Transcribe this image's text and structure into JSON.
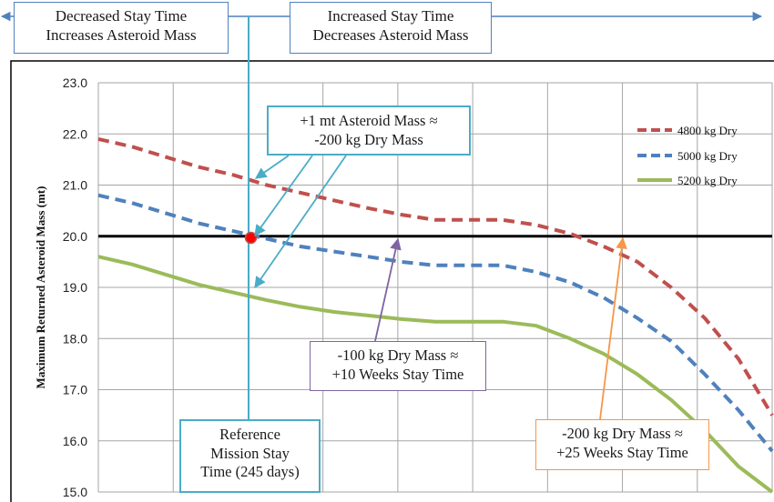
{
  "header": {
    "left_box": {
      "line1": "Decreased Stay Time",
      "line2": "Increases Asteroid Mass"
    },
    "right_box": {
      "line1": "Increased Stay Time",
      "line2": "Decreases Asteroid Mass"
    }
  },
  "annotations": {
    "asteroid_mass": {
      "line1": "+1 mt Asteroid Mass ≈",
      "line2": "-200 kg Dry Mass"
    },
    "dry_mass_100": {
      "line1": "-100 kg Dry Mass ≈",
      "line2": "+10 Weeks Stay Time"
    },
    "reference": {
      "line1": "Reference",
      "line2": "Mission Stay",
      "line3": "Time (245 days)"
    },
    "dry_mass_200": {
      "line1": "-200 kg Dry Mass ≈",
      "line2": "+25 Weeks Stay Time"
    }
  },
  "colors": {
    "series_4800": "#c0504d",
    "series_5000": "#4f81bd",
    "series_5200": "#9bbb59",
    "reference_line": "#000000",
    "cyan_annotation": "#4bacc6",
    "purple_annotation": "#8064a2",
    "orange_annotation": "#f79646",
    "arrow_blue": "#4f81bd",
    "grid": "#a6a6a6"
  },
  "chart_data": {
    "type": "line",
    "title": "",
    "xlabel": "",
    "ylabel": "Maximum Returned Asteroid Mass (mt)",
    "ylim": [
      15.0,
      23.0
    ],
    "yticks": [
      "15.0",
      "16.0",
      "17.0",
      "18.0",
      "19.0",
      "20.0",
      "21.0",
      "22.0",
      "23.0"
    ],
    "xgrid_count": 9,
    "grid": true,
    "legend_position": "top-right",
    "reference_value": 20.0,
    "reference_stay_fraction": 0.225,
    "marker": {
      "x_fraction": 0.225,
      "y": 19.97
    },
    "series": [
      {
        "name": "4800 kg Dry",
        "color": "#c0504d",
        "dash": "dashed",
        "x": [
          0,
          0.05,
          0.1,
          0.15,
          0.2,
          0.25,
          0.3,
          0.35,
          0.4,
          0.45,
          0.5,
          0.55,
          0.6,
          0.65,
          0.7,
          0.75,
          0.8,
          0.85,
          0.9,
          0.95,
          1.0
        ],
        "values": [
          21.9,
          21.75,
          21.55,
          21.35,
          21.2,
          21.0,
          20.85,
          20.7,
          20.55,
          20.42,
          20.32,
          20.32,
          20.32,
          20.22,
          20.05,
          19.8,
          19.5,
          19.0,
          18.4,
          17.6,
          16.5
        ]
      },
      {
        "name": "5000 kg Dry",
        "color": "#4f81bd",
        "dash": "dashed",
        "x": [
          0,
          0.05,
          0.1,
          0.15,
          0.2,
          0.25,
          0.3,
          0.35,
          0.4,
          0.45,
          0.5,
          0.55,
          0.6,
          0.65,
          0.7,
          0.75,
          0.8,
          0.85,
          0.9,
          0.95,
          1.0
        ],
        "values": [
          20.8,
          20.65,
          20.45,
          20.25,
          20.1,
          19.95,
          19.8,
          19.7,
          19.6,
          19.5,
          19.43,
          19.43,
          19.43,
          19.3,
          19.1,
          18.8,
          18.4,
          17.95,
          17.3,
          16.6,
          15.8
        ]
      },
      {
        "name": "5200 kg Dry",
        "color": "#9bbb59",
        "dash": "solid",
        "x": [
          0,
          0.05,
          0.1,
          0.15,
          0.2,
          0.25,
          0.3,
          0.35,
          0.4,
          0.45,
          0.5,
          0.55,
          0.6,
          0.65,
          0.7,
          0.75,
          0.8,
          0.85,
          0.9,
          0.95,
          1.0
        ],
        "values": [
          19.6,
          19.45,
          19.25,
          19.05,
          18.9,
          18.75,
          18.62,
          18.52,
          18.45,
          18.38,
          18.33,
          18.33,
          18.33,
          18.25,
          18.0,
          17.7,
          17.3,
          16.8,
          16.2,
          15.5,
          15.0
        ]
      }
    ]
  }
}
